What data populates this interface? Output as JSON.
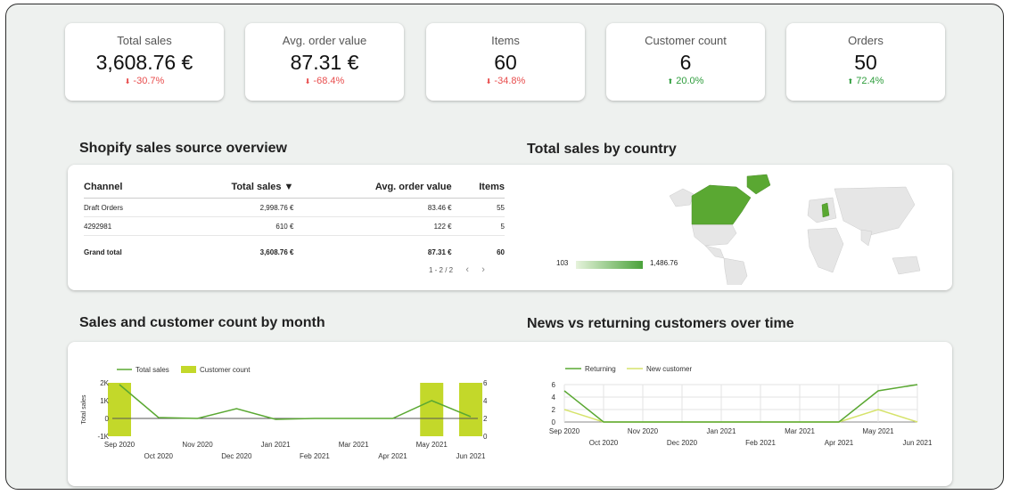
{
  "kpis": [
    {
      "label": "Total sales",
      "value": "3,608.76 €",
      "delta": "-30.7%",
      "trend": "down"
    },
    {
      "label": "Avg. order value",
      "value": "87.31 €",
      "delta": "-68.4%",
      "trend": "down"
    },
    {
      "label": "Items",
      "value": "60",
      "delta": "-34.8%",
      "trend": "down"
    },
    {
      "label": "Customer count",
      "value": "6",
      "delta": "20.0%",
      "trend": "up"
    },
    {
      "label": "Orders",
      "value": "50",
      "delta": "72.4%",
      "trend": "up"
    }
  ],
  "colors": {
    "down": "#e84d4d",
    "up": "#2e9d3c",
    "sales_line": "#5aa832",
    "customer_bar": "#c3d82a",
    "returning": "#5aa832",
    "new_customer": "#d6e36b"
  },
  "sections": {
    "shopify": "Shopify sales source overview",
    "country": "Total sales by country",
    "monthly": "Sales and customer count by month",
    "returning": "News vs returning customers over time"
  },
  "table": {
    "headers": [
      "Channel",
      "Total sales ▼",
      "Avg. order value",
      "Items"
    ],
    "rows": [
      [
        "Draft Orders",
        "2,998.76 €",
        "83.46 €",
        "55"
      ],
      [
        "4292981",
        "610 €",
        "122 €",
        "5"
      ]
    ],
    "total": [
      "Grand total",
      "3,608.76 €",
      "87.31 €",
      "60"
    ],
    "pager": "1 - 2 / 2",
    "prev": "‹",
    "next": "›"
  },
  "map": {
    "legend_min": "103",
    "legend_max": "1,486.76"
  },
  "chart_data": [
    {
      "type": "bar",
      "title": "Sales and customer count by month",
      "x": [
        "Sep 2020",
        "Oct 2020",
        "Nov 2020",
        "Dec 2020",
        "Jan 2021",
        "Feb 2021",
        "Mar 2021",
        "Apr 2021",
        "May 2021",
        "Jun 2021"
      ],
      "series": [
        {
          "name": "Total sales",
          "type": "line",
          "axis": "left",
          "values": [
            1900,
            50,
            0,
            550,
            -50,
            0,
            0,
            0,
            1000,
            100
          ]
        },
        {
          "name": "Customer count",
          "type": "bar",
          "axis": "right",
          "values": [
            6,
            0,
            0,
            0,
            0,
            0,
            0,
            0,
            6,
            6
          ]
        }
      ],
      "ylabel": "Total sales",
      "ylim": [
        -1000,
        2000
      ],
      "yticks": [
        "2K",
        "1K",
        "0",
        "-1K"
      ],
      "y2label": "Customer count",
      "y2lim": [
        0,
        6
      ],
      "y2ticks": [
        "6",
        "4",
        "2",
        "0"
      ]
    },
    {
      "type": "line",
      "title": "News vs returning customers over time",
      "x": [
        "Sep 2020",
        "Oct 2020",
        "Nov 2020",
        "Dec 2020",
        "Jan 2021",
        "Feb 2021",
        "Mar 2021",
        "Apr 2021",
        "May 2021",
        "Jun 2021"
      ],
      "series": [
        {
          "name": "Returning",
          "values": [
            5,
            0,
            0,
            0,
            0,
            0,
            0,
            0,
            5,
            6
          ]
        },
        {
          "name": "New customer",
          "values": [
            2,
            0,
            0,
            0,
            0,
            0,
            0,
            0,
            2,
            0
          ]
        }
      ],
      "ylim": [
        0,
        6
      ],
      "yticks": [
        "6",
        "4",
        "2",
        "0"
      ]
    }
  ]
}
